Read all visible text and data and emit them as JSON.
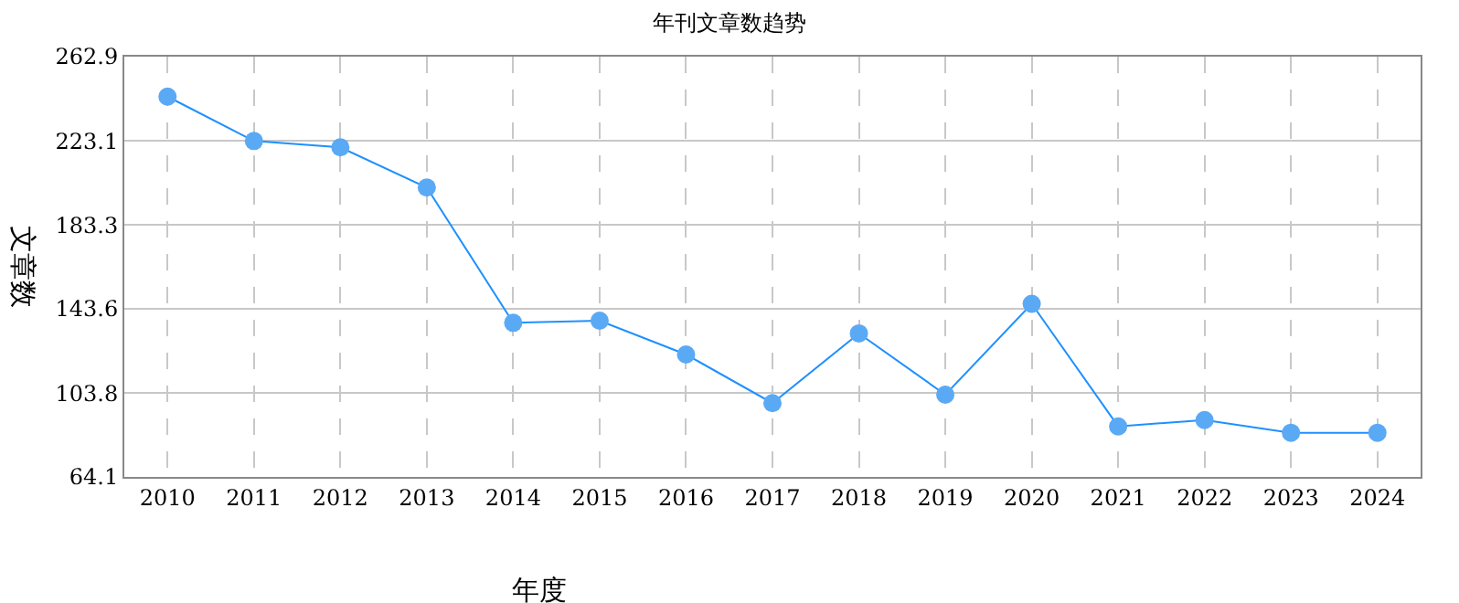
{
  "chart_data": {
    "type": "line",
    "title": "年刊文章数趋势",
    "xlabel": "年度",
    "ylabel": "文章数",
    "categories": [
      "2010",
      "2011",
      "2012",
      "2013",
      "2014",
      "2015",
      "2016",
      "2017",
      "2018",
      "2019",
      "2020",
      "2021",
      "2022",
      "2023",
      "2024"
    ],
    "series": [
      {
        "color": "#1e90ff",
        "values": [
          244,
          223,
          220,
          201,
          137,
          138,
          122,
          99,
          132,
          103,
          146,
          88,
          91,
          85,
          85
        ]
      }
    ],
    "ylim": [
      64.1,
      262.9
    ],
    "yticks": [
      64.1,
      103.8,
      143.6,
      183.3,
      223.1,
      262.9
    ],
    "grid": true,
    "marker": "circle",
    "line_style": "solid"
  }
}
